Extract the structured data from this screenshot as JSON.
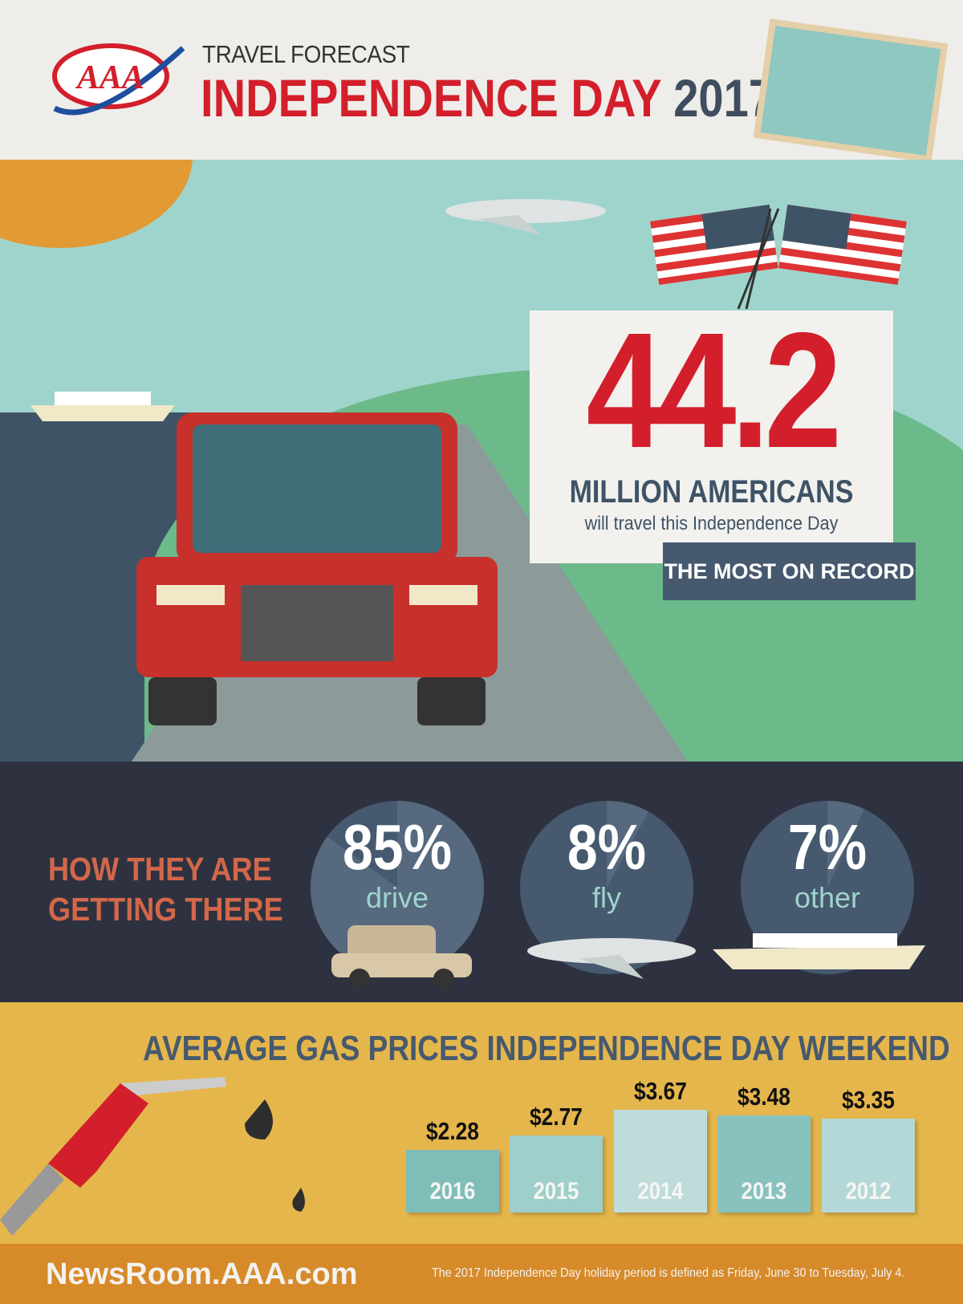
{
  "header": {
    "logo_text": "AAA",
    "subtitle": "TRAVEL FORECAST",
    "title": "INDEPENDENCE DAY",
    "year": "2017"
  },
  "hero": {
    "number": "44.2",
    "unit": "MILLION AMERICANS",
    "caption": "will travel this Independence Day",
    "badge": "THE MOST ON RECORD"
  },
  "modes": {
    "heading_line1": "HOW THEY ARE",
    "heading_line2": "GETTING THERE",
    "items": [
      {
        "percent": "85%",
        "label": "drive",
        "value": 85
      },
      {
        "percent": "8%",
        "label": "fly",
        "value": 8
      },
      {
        "percent": "7%",
        "label": "other",
        "value": 7
      }
    ]
  },
  "chart_data": {
    "type": "bar",
    "title": "AVERAGE GAS PRICES INDEPENDENCE DAY WEEKEND",
    "categories": [
      "2016",
      "2015",
      "2014",
      "2013",
      "2012"
    ],
    "values": [
      2.28,
      2.77,
      3.67,
      3.48,
      3.35
    ],
    "data_labels": [
      "$2.28",
      "$2.77",
      "$3.67",
      "$3.48",
      "$3.35"
    ],
    "colors": [
      "#7fbdb9",
      "#9fcfcb",
      "#bfdcdb",
      "#88c2bf",
      "#b4d8d7"
    ]
  },
  "footer": {
    "site": "NewsRoom.AAA.com",
    "note": "The 2017 Independence Day holiday period is defined as Friday, June 30 to Tuesday, July 4."
  },
  "colors": {
    "red": "#d31f2b",
    "navy": "#46596e",
    "orange": "#d68a29",
    "mustard": "#e5b64c",
    "dark": "#2e3240"
  }
}
